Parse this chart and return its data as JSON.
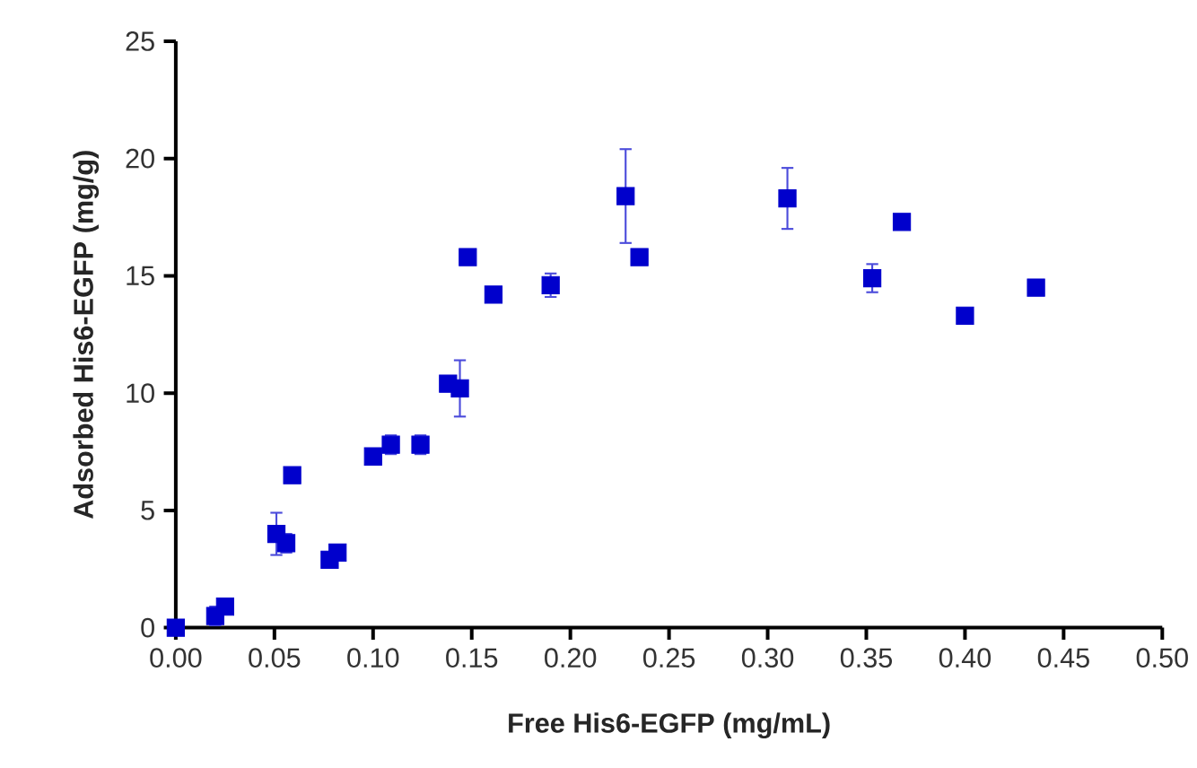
{
  "chart_data": {
    "type": "scatter",
    "xlabel": "Free His6-EGFP (mg/mL)",
    "ylabel": "Adsorbed His6-EGFP (mg/g)",
    "x": [
      0.0,
      0.02,
      0.025,
      0.051,
      0.056,
      0.059,
      0.078,
      0.082,
      0.1,
      0.109,
      0.124,
      0.138,
      0.144,
      0.148,
      0.161,
      0.19,
      0.228,
      0.235,
      0.31,
      0.353,
      0.368,
      0.4,
      0.436
    ],
    "series": [
      {
        "color": "#0000cc",
        "values": [
          0.0,
          0.5,
          0.9,
          4.0,
          3.6,
          6.5,
          2.9,
          3.2,
          7.3,
          7.8,
          7.8,
          10.4,
          10.2,
          15.8,
          14.2,
          14.6,
          18.4,
          15.8,
          18.3,
          14.9,
          17.3,
          13.3,
          14.5
        ],
        "errors": [
          null,
          0.4,
          null,
          0.9,
          0.4,
          null,
          null,
          null,
          null,
          0.4,
          0.4,
          null,
          1.2,
          null,
          null,
          0.5,
          2.0,
          null,
          1.3,
          0.6,
          null,
          null,
          null
        ]
      }
    ],
    "xlim": [
      0,
      0.5
    ],
    "ylim": [
      0,
      25
    ],
    "xticks": [
      {
        "value": 0,
        "label": "0.00"
      },
      0.05,
      {
        "value": 0.1,
        "label": "0.10"
      },
      0.15,
      {
        "value": 0.2,
        "label": "0.20"
      },
      0.25,
      {
        "value": 0.3,
        "label": "0.30"
      },
      0.35,
      {
        "value": 0.4,
        "label": "0.40"
      },
      0.45,
      {
        "value": 0.5,
        "label": "0.50"
      }
    ],
    "yticks": [
      0,
      5,
      10,
      15,
      20,
      25
    ],
    "marker": "square",
    "grid": false
  }
}
